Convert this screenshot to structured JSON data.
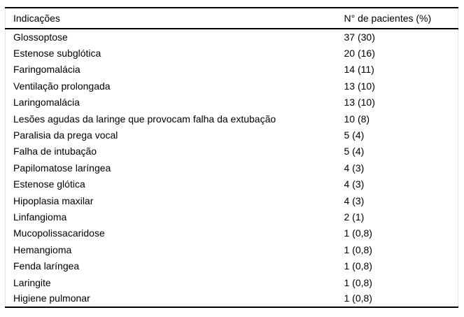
{
  "table": {
    "header": {
      "indications": "Indicações",
      "patients": "N° de pacientes (%)"
    },
    "rows": [
      {
        "indication": "Glossoptose",
        "patients": "37 (30)"
      },
      {
        "indication": "Estenose subglótica",
        "patients": "20 (16)"
      },
      {
        "indication": "Faringomalácia",
        "patients": "14 (11)"
      },
      {
        "indication": "Ventilação prolongada",
        "patients": "13 (10)"
      },
      {
        "indication": "Laringomalácia",
        "patients": "13 (10)"
      },
      {
        "indication": "Lesões agudas da laringe que provocam falha da extubação",
        "patients": "10 (8)"
      },
      {
        "indication": "Paralisia da prega vocal",
        "patients": "5 (4)"
      },
      {
        "indication": "Falha de intubação",
        "patients": "5 (4)"
      },
      {
        "indication": "Papilomatose laríngea",
        "patients": "4 (3)"
      },
      {
        "indication": "Estenose glótica",
        "patients": "4 (3)"
      },
      {
        "indication": "Hipoplasia maxilar",
        "patients": "4 (3)"
      },
      {
        "indication": "Linfangioma",
        "patients": "2 (1)"
      },
      {
        "indication": "Mucopolissacaridose",
        "patients": "1 (0,8)"
      },
      {
        "indication": "Hemangioma",
        "patients": "1 (0,8)"
      },
      {
        "indication": "Fenda laríngea",
        "patients": "1 (0,8)"
      },
      {
        "indication": "Laringite",
        "patients": "1 (0,8)"
      },
      {
        "indication": "Higiene pulmonar",
        "patients": "1 (0,8)"
      }
    ]
  },
  "chart_data": {
    "type": "table",
    "columns": [
      "Indicações",
      "N° de pacientes (%)"
    ],
    "rows": [
      [
        "Glossoptose",
        "37 (30)"
      ],
      [
        "Estenose subglótica",
        "20 (16)"
      ],
      [
        "Faringomalácia",
        "14 (11)"
      ],
      [
        "Ventilação prolongada",
        "13 (10)"
      ],
      [
        "Laringomalácia",
        "13 (10)"
      ],
      [
        "Lesões agudas da laringe que provocam falha da extubação",
        "10 (8)"
      ],
      [
        "Paralisia da prega vocal",
        "5 (4)"
      ],
      [
        "Falha de intubação",
        "5 (4)"
      ],
      [
        "Papilomatose laríngea",
        "4 (3)"
      ],
      [
        "Estenose glótica",
        "4 (3)"
      ],
      [
        "Hipoplasia maxilar",
        "4 (3)"
      ],
      [
        "Linfangioma",
        "2 (1)"
      ],
      [
        "Mucopolissacaridose",
        "1 (0,8)"
      ],
      [
        "Hemangioma",
        "1 (0,8)"
      ],
      [
        "Fenda laríngea",
        "1 (0,8)"
      ],
      [
        "Laringite",
        "1 (0,8)"
      ],
      [
        "Higiene pulmonar",
        "1 (0,8)"
      ]
    ]
  },
  "colors": {
    "background": "#ffffff",
    "text": "#000000",
    "horizontal_rule": "#000000",
    "side_rule": "#e4e4e4"
  }
}
